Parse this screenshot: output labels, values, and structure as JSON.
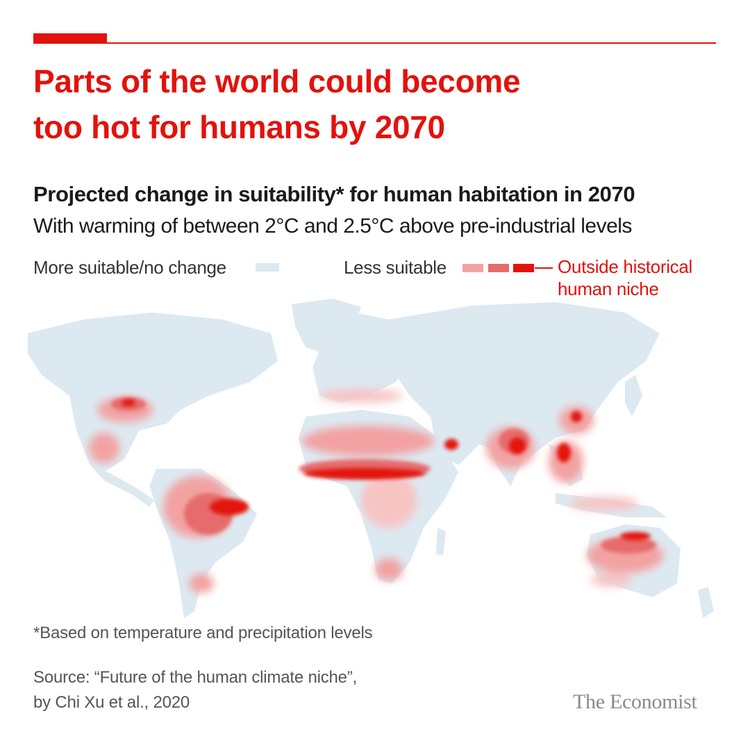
{
  "header": {
    "headline_line1": "Parts of the world could become",
    "headline_line2": "too hot for humans by 2070",
    "subtitle": "Projected change in suitability* for human habitation in 2070",
    "subtitle_2": "With warming of between 2°C and 2.5°C above pre-industrial levels"
  },
  "legend": {
    "more_label": "More suitable/no change",
    "less_label": "Less suitable",
    "outside_label_line1": "Outside historical",
    "outside_label_line2": "human niche",
    "colors": {
      "more": "#dde9f1",
      "less_light": "#f2a2a2",
      "less_mid": "#e66c6c",
      "outside": "#e3120b"
    }
  },
  "map": {
    "projection": "world",
    "regions_outside_niche": [
      "Sahel",
      "Northern South America",
      "Northern Australia",
      "India",
      "Southeast Asia",
      "Persian Gulf",
      "Southern United States"
    ]
  },
  "footer": {
    "footnote": "*Based on temperature and precipitation levels",
    "source_line1": "Source: “Future of the human climate niche”,",
    "source_line2": "by Chi Xu et al., 2020",
    "logo": "The Economist"
  }
}
